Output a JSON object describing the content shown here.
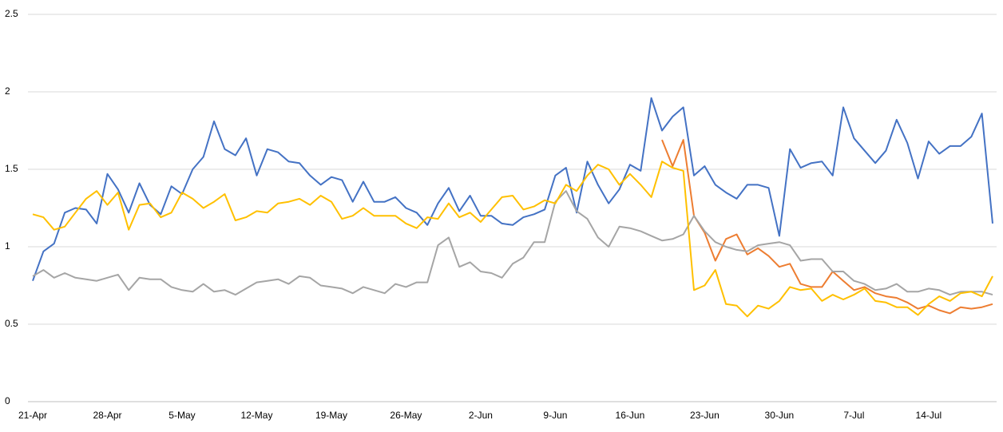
{
  "chart_data": {
    "type": "line",
    "categories": [
      "21-Apr",
      null,
      null,
      null,
      null,
      null,
      null,
      "28-Apr",
      null,
      null,
      null,
      null,
      null,
      null,
      "5-May",
      null,
      null,
      null,
      null,
      null,
      null,
      "12-May",
      null,
      null,
      null,
      null,
      null,
      null,
      "19-May",
      null,
      null,
      null,
      null,
      null,
      null,
      "26-May",
      null,
      null,
      null,
      null,
      null,
      null,
      "2-Jun",
      null,
      null,
      null,
      null,
      null,
      null,
      "9-Jun",
      null,
      null,
      null,
      null,
      null,
      null,
      "16-Jun",
      null,
      null,
      null,
      null,
      null,
      null,
      "23-Jun",
      null,
      null,
      null,
      null,
      null,
      null,
      "30-Jun",
      null,
      null,
      null,
      null,
      null,
      null,
      "7-Jul",
      null,
      null,
      null,
      null,
      null,
      null,
      "14-Jul",
      null,
      null,
      null,
      null,
      null,
      null
    ],
    "series": [
      {
        "color": "#4472c4",
        "values": [
          0.78,
          0.97,
          1.02,
          1.22,
          1.25,
          1.24,
          1.15,
          1.47,
          1.37,
          1.22,
          1.41,
          1.27,
          1.21,
          1.39,
          1.34,
          1.5,
          1.58,
          1.81,
          1.63,
          1.59,
          1.7,
          1.46,
          1.63,
          1.61,
          1.55,
          1.54,
          1.46,
          1.4,
          1.45,
          1.43,
          1.29,
          1.42,
          1.29,
          1.29,
          1.32,
          1.25,
          1.22,
          1.14,
          1.28,
          1.38,
          1.23,
          1.33,
          1.2,
          1.2,
          1.15,
          1.14,
          1.19,
          1.21,
          1.24,
          1.46,
          1.51,
          1.22,
          1.55,
          1.4,
          1.28,
          1.37,
          1.53,
          1.49,
          1.96,
          1.75,
          1.84,
          1.9,
          1.46,
          1.52,
          1.4,
          1.35,
          1.31,
          1.4,
          1.4,
          1.38,
          1.07,
          1.63,
          1.51,
          1.54,
          1.55,
          1.46,
          1.9,
          1.7,
          1.62,
          1.54,
          1.62,
          1.82,
          1.67,
          1.44,
          1.68,
          1.6,
          1.65,
          1.65,
          1.71,
          1.86,
          1.15
        ]
      },
      {
        "color": "#ed7d31",
        "values": [
          null,
          null,
          null,
          null,
          null,
          null,
          null,
          null,
          null,
          null,
          null,
          null,
          null,
          null,
          null,
          null,
          null,
          null,
          null,
          null,
          null,
          null,
          null,
          null,
          null,
          null,
          null,
          null,
          null,
          null,
          null,
          null,
          null,
          null,
          null,
          null,
          null,
          null,
          null,
          null,
          null,
          null,
          null,
          null,
          null,
          null,
          null,
          null,
          null,
          null,
          null,
          null,
          null,
          null,
          null,
          null,
          null,
          null,
          null,
          1.69,
          1.52,
          1.69,
          1.2,
          1.09,
          0.91,
          1.05,
          1.08,
          0.95,
          0.99,
          0.94,
          0.87,
          0.89,
          0.76,
          0.74,
          0.74,
          0.84,
          0.78,
          0.72,
          0.74,
          0.7,
          0.68,
          0.67,
          0.64,
          0.6,
          0.62,
          0.59,
          0.57,
          0.61,
          0.6,
          0.61,
          0.63
        ]
      },
      {
        "color": "#a5a5a5",
        "values": [
          0.81,
          0.85,
          0.8,
          0.83,
          0.8,
          0.79,
          0.78,
          0.8,
          0.82,
          0.72,
          0.8,
          0.79,
          0.79,
          0.74,
          0.72,
          0.71,
          0.76,
          0.71,
          0.72,
          0.69,
          0.73,
          0.77,
          0.78,
          0.79,
          0.76,
          0.81,
          0.8,
          0.75,
          0.74,
          0.73,
          0.7,
          0.74,
          0.72,
          0.7,
          0.76,
          0.74,
          0.77,
          0.77,
          1.01,
          1.06,
          0.87,
          0.9,
          0.84,
          0.83,
          0.8,
          0.89,
          0.93,
          1.03,
          1.03,
          1.29,
          1.36,
          1.23,
          1.18,
          1.06,
          1.0,
          1.13,
          1.12,
          1.1,
          1.07,
          1.04,
          1.05,
          1.08,
          1.2,
          1.1,
          1.03,
          1.0,
          0.98,
          0.97,
          1.01,
          1.02,
          1.03,
          1.01,
          0.91,
          0.92,
          0.92,
          0.84,
          0.84,
          0.78,
          0.76,
          0.72,
          0.73,
          0.76,
          0.71,
          0.71,
          0.73,
          0.72,
          0.69,
          0.71,
          0.71,
          0.71,
          0.69
        ]
      },
      {
        "color": "#ffc000",
        "values": [
          1.21,
          1.19,
          1.11,
          1.13,
          1.22,
          1.31,
          1.36,
          1.27,
          1.35,
          1.11,
          1.27,
          1.28,
          1.19,
          1.22,
          1.35,
          1.31,
          1.25,
          1.29,
          1.34,
          1.17,
          1.19,
          1.23,
          1.22,
          1.28,
          1.29,
          1.31,
          1.27,
          1.33,
          1.29,
          1.18,
          1.2,
          1.25,
          1.2,
          1.2,
          1.2,
          1.15,
          1.12,
          1.19,
          1.18,
          1.28,
          1.19,
          1.22,
          1.16,
          1.24,
          1.32,
          1.33,
          1.24,
          1.26,
          1.3,
          1.28,
          1.4,
          1.36,
          1.46,
          1.53,
          1.5,
          1.4,
          1.47,
          1.4,
          1.32,
          1.55,
          1.51,
          1.49,
          0.72,
          0.75,
          0.85,
          0.63,
          0.62,
          0.55,
          0.62,
          0.6,
          0.65,
          0.74,
          0.72,
          0.73,
          0.65,
          0.69,
          0.66,
          0.69,
          0.73,
          0.65,
          0.64,
          0.61,
          0.61,
          0.56,
          0.63,
          0.68,
          0.65,
          0.7,
          0.71,
          0.68,
          0.81
        ]
      }
    ],
    "ylim": [
      0,
      2.5
    ],
    "yticks": [
      0,
      0.5,
      1,
      1.5,
      2,
      2.5
    ],
    "grid": true
  }
}
